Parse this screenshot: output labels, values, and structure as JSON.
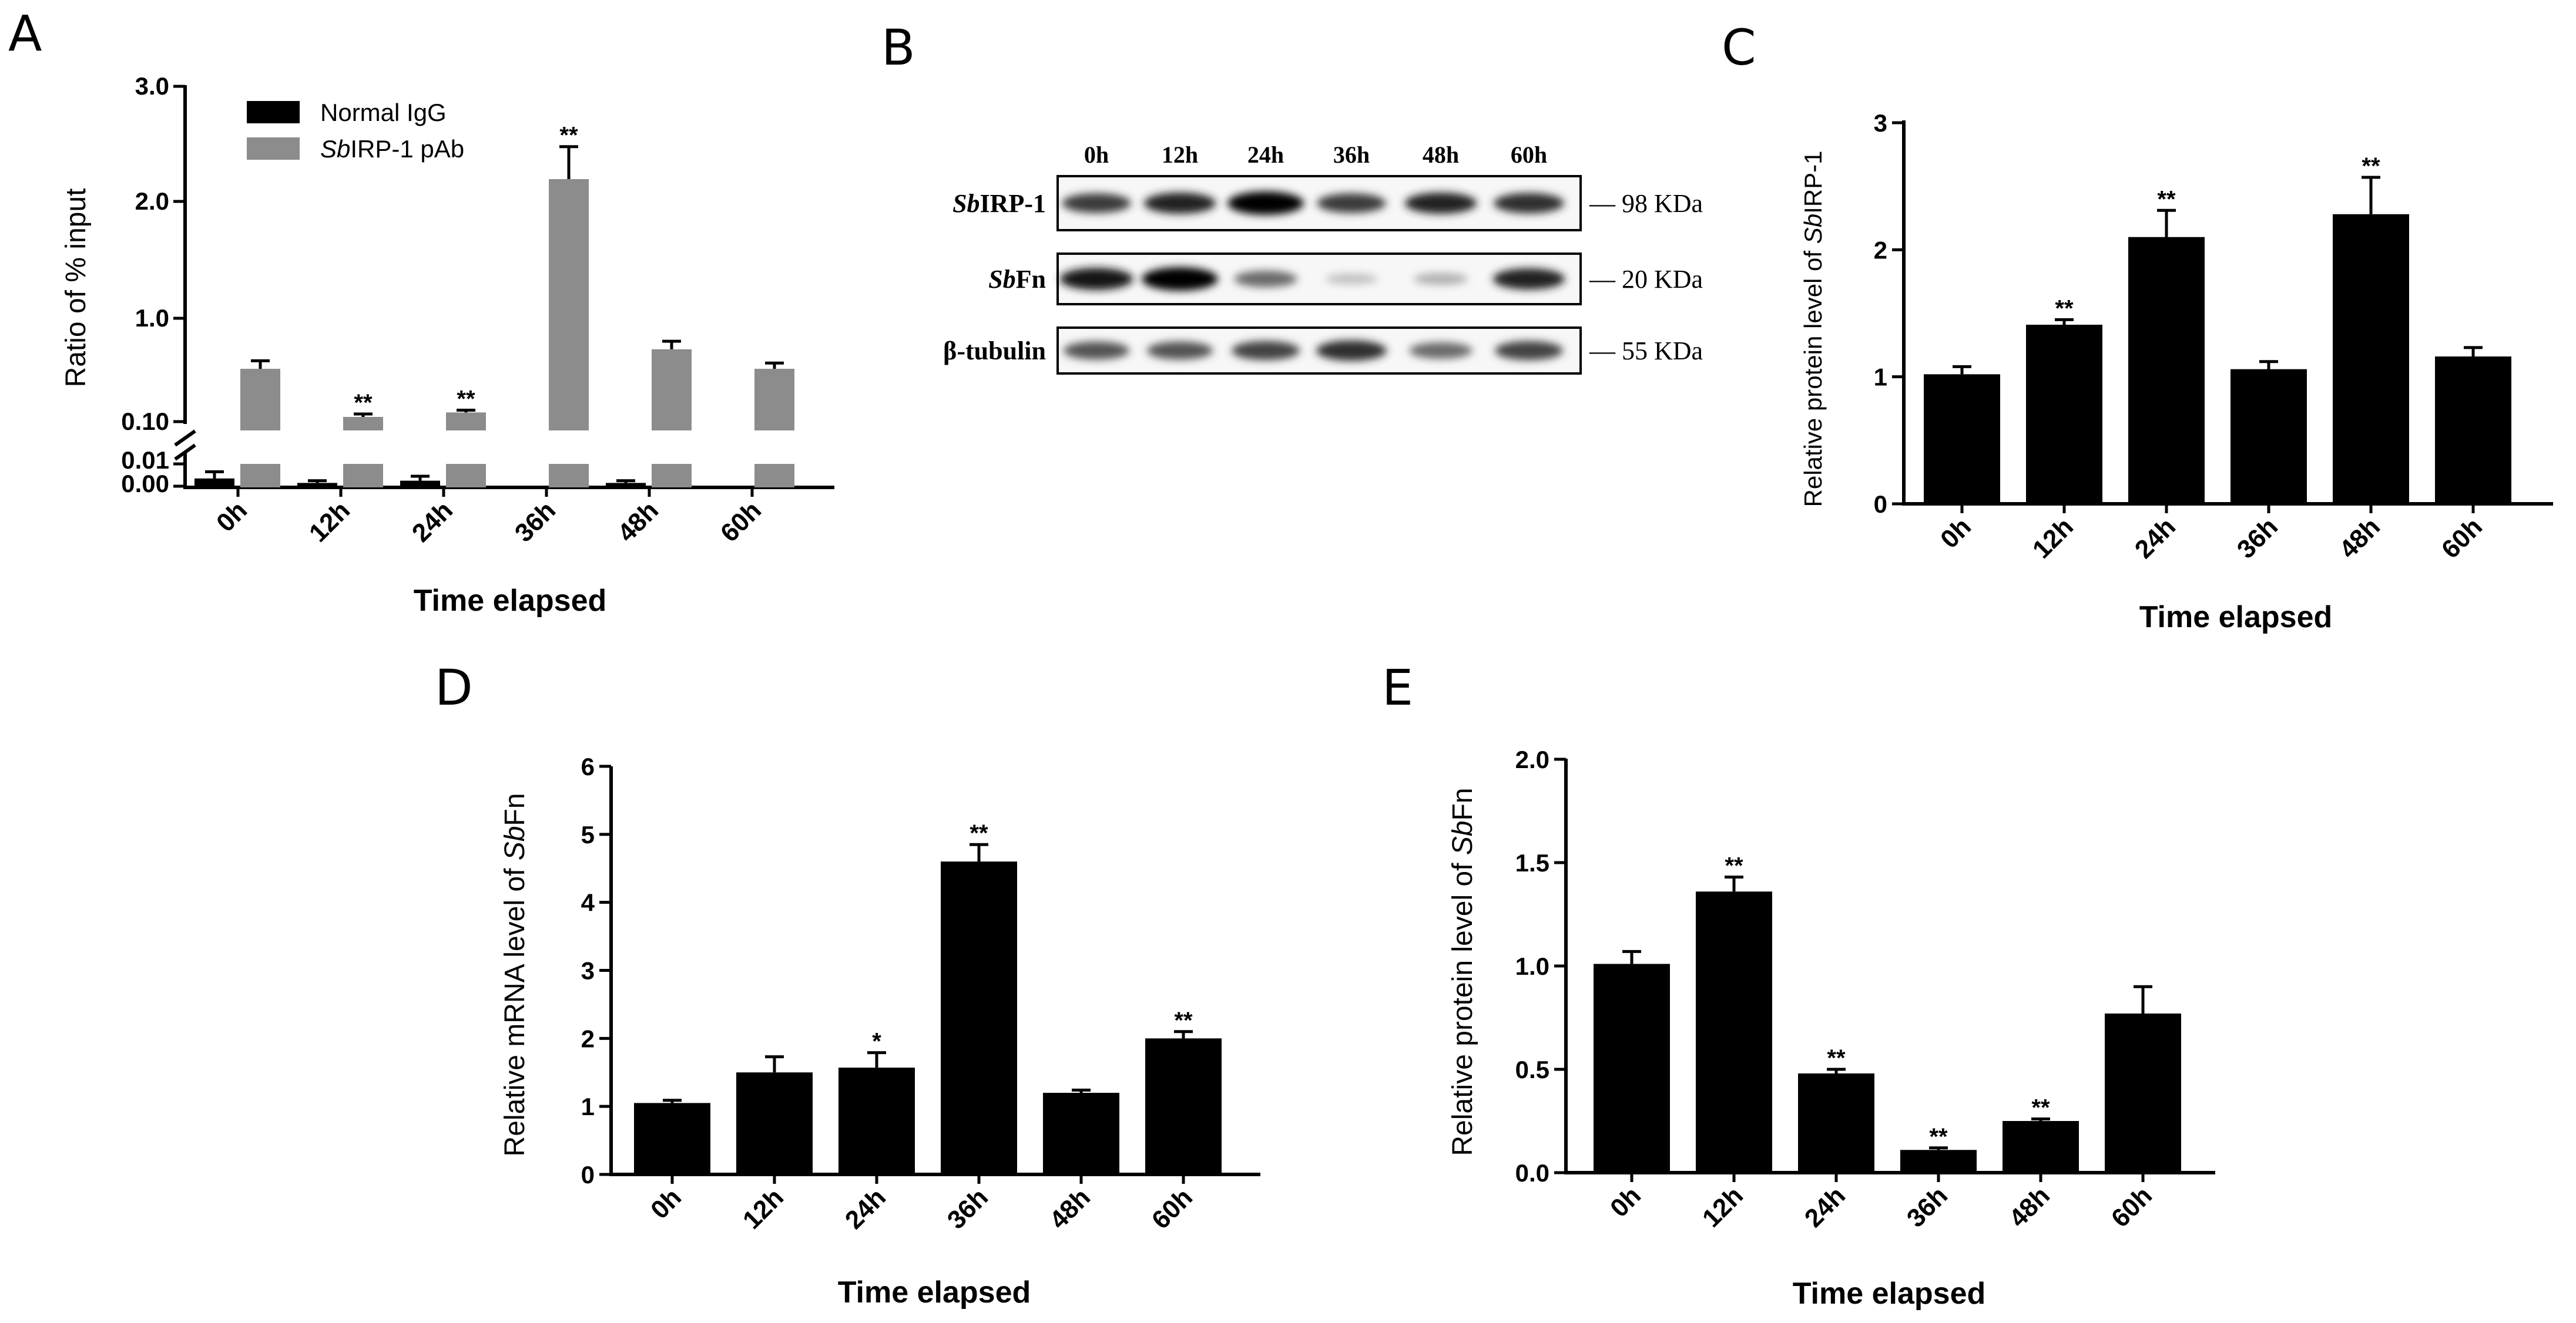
{
  "panel_labels": {
    "a": "A",
    "b": "B",
    "c": "C",
    "d": "D",
    "e": "E"
  },
  "colors": {
    "normal_igg": "#000000",
    "sbirp_pab": "#8c8c8c",
    "bar": "#000000"
  },
  "chart_data": [
    {
      "id": "A",
      "type": "bar",
      "categories": [
        "0h",
        "12h",
        "24h",
        "36h",
        "48h",
        "60h"
      ],
      "ylabel": "Ratio of % input",
      "xlabel": "Time elapsed",
      "yticks_upper": [
        "3.0",
        "2.0",
        "1.0",
        "0.10"
      ],
      "yticks_lower": [
        "0.01",
        "0.00"
      ],
      "legend": {
        "normal_igg": "Normal IgG",
        "sb_prefix": "Sb",
        "sbirp_rest": "IRP-1 pAb"
      },
      "series": [
        {
          "name": "Normal IgG",
          "values": [
            0.004,
            0.002,
            0.003,
            0.0,
            0.002,
            0.0
          ],
          "errors": [
            0.003,
            0.001,
            0.002,
            0.0,
            0.001,
            0.0
          ]
        },
        {
          "name": "SbIRP-1 pAb",
          "values": [
            0.56,
            0.1,
            0.18,
            2.2,
            0.73,
            0.56
          ],
          "errors": [
            0.07,
            0.02,
            0.02,
            0.28,
            0.07,
            0.05
          ],
          "sig": [
            "",
            "**",
            "**",
            "**",
            "",
            ""
          ]
        }
      ]
    },
    {
      "id": "C",
      "type": "bar",
      "categories": [
        "0h",
        "12h",
        "24h",
        "36h",
        "48h",
        "60h"
      ],
      "values": [
        1.02,
        1.41,
        2.1,
        1.06,
        2.28,
        1.16
      ],
      "errors": [
        0.06,
        0.04,
        0.21,
        0.06,
        0.29,
        0.07
      ],
      "sig": [
        "",
        "**",
        "**",
        "",
        "**",
        ""
      ],
      "ylabel_prefix": "Relative protein level of ",
      "ylabel_italic": "Sb",
      "ylabel_suffix": "IRP-1",
      "xlabel": "Time elapsed",
      "yticks": [
        "0",
        "1",
        "2",
        "3"
      ],
      "ylim": [
        0,
        3
      ]
    },
    {
      "id": "D",
      "type": "bar",
      "categories": [
        "0h",
        "12h",
        "24h",
        "36h",
        "48h",
        "60h"
      ],
      "values": [
        1.05,
        1.5,
        1.57,
        4.6,
        1.2,
        2.0
      ],
      "errors": [
        0.04,
        0.23,
        0.22,
        0.25,
        0.04,
        0.1
      ],
      "sig": [
        "",
        "",
        "*",
        "**",
        "",
        "**"
      ],
      "ylabel_prefix": "Relative mRNA level of ",
      "ylabel_italic": "Sb",
      "ylabel_suffix": "Fn",
      "xlabel": "Time elapsed",
      "yticks": [
        "0",
        "1",
        "2",
        "3",
        "4",
        "5",
        "6"
      ],
      "ylim": [
        0,
        6
      ]
    },
    {
      "id": "E",
      "type": "bar",
      "categories": [
        "0h",
        "12h",
        "24h",
        "36h",
        "48h",
        "60h"
      ],
      "values": [
        1.01,
        1.36,
        0.48,
        0.11,
        0.25,
        0.77
      ],
      "errors": [
        0.06,
        0.07,
        0.02,
        0.01,
        0.01,
        0.13
      ],
      "sig": [
        "",
        "**",
        "**",
        "**",
        "**",
        ""
      ],
      "ylabel_prefix": "Relative protein level of ",
      "ylabel_italic": "Sb",
      "ylabel_suffix": "Fn",
      "xlabel": "Time elapsed",
      "yticks": [
        "0.0",
        "0.5",
        "1.0",
        "1.5",
        "2.0"
      ],
      "ylim": [
        0,
        2
      ]
    }
  ],
  "western_blot": {
    "times": [
      "0h",
      "12h",
      "24h",
      "36h",
      "48h",
      "60h"
    ],
    "rows": [
      {
        "italic": "Sb",
        "label": "IRP-1",
        "size": "— 98 KDa",
        "intensity": [
          0.75,
          0.85,
          1.0,
          0.75,
          0.85,
          0.8
        ]
      },
      {
        "italic": "Sb",
        "label": "Fn",
        "size": "— 20 KDa",
        "intensity": [
          0.9,
          1.0,
          0.55,
          0.18,
          0.25,
          0.85
        ]
      },
      {
        "italic": "",
        "label": "β-tubulin",
        "size": "— 55 KDa",
        "intensity": [
          0.65,
          0.65,
          0.72,
          0.8,
          0.55,
          0.72
        ]
      }
    ]
  }
}
